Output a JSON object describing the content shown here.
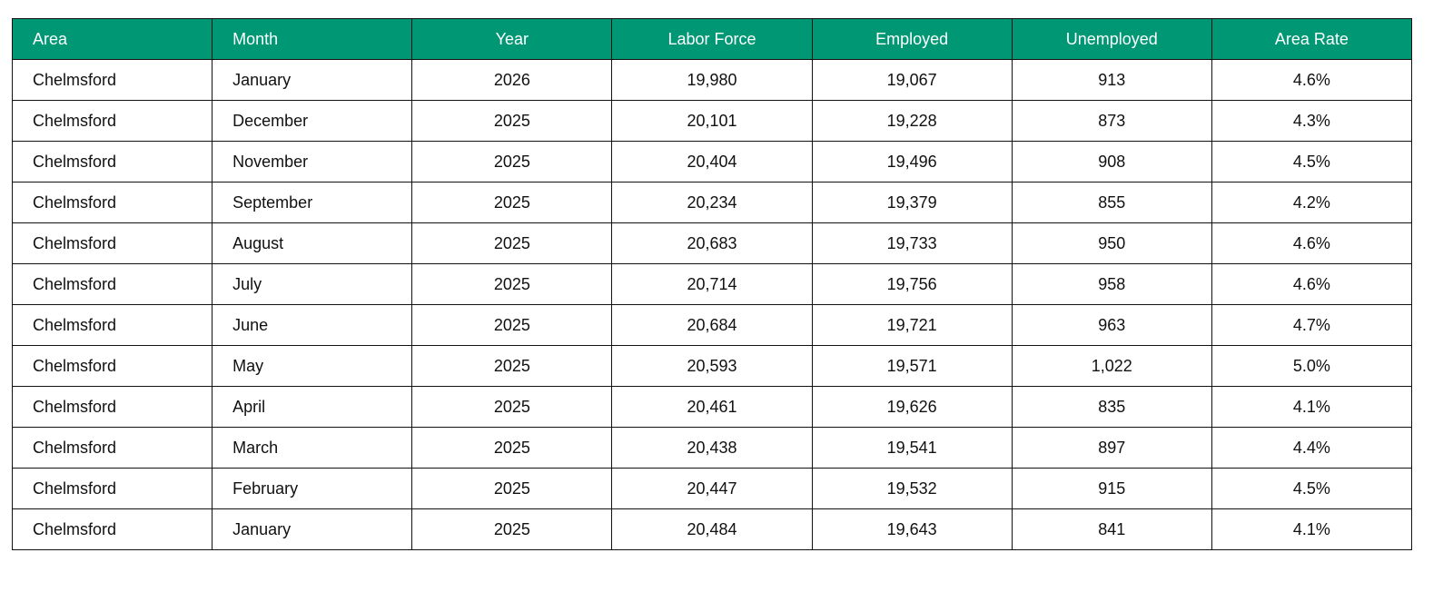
{
  "table": {
    "header": [
      "Area",
      "Month",
      "Year",
      "Labor Force",
      "Employed",
      "Unemployed",
      "Area Rate"
    ],
    "rows": [
      [
        "Chelmsford",
        "January",
        "2026",
        "19,980",
        "19,067",
        "913",
        "4.6%"
      ],
      [
        "Chelmsford",
        "December",
        "2025",
        "20,101",
        "19,228",
        "873",
        "4.3%"
      ],
      [
        "Chelmsford",
        "November",
        "2025",
        "20,404",
        "19,496",
        "908",
        "4.5%"
      ],
      [
        "Chelmsford",
        "September",
        "2025",
        "20,234",
        "19,379",
        "855",
        "4.2%"
      ],
      [
        "Chelmsford",
        "August",
        "2025",
        "20,683",
        "19,733",
        "950",
        "4.6%"
      ],
      [
        "Chelmsford",
        "July",
        "2025",
        "20,714",
        "19,756",
        "958",
        "4.6%"
      ],
      [
        "Chelmsford",
        "June",
        "2025",
        "20,684",
        "19,721",
        "963",
        "4.7%"
      ],
      [
        "Chelmsford",
        "May",
        "2025",
        "20,593",
        "19,571",
        "1,022",
        "5.0%"
      ],
      [
        "Chelmsford",
        "April",
        "2025",
        "20,461",
        "19,626",
        "835",
        "4.1%"
      ],
      [
        "Chelmsford",
        "March",
        "2025",
        "20,438",
        "19,541",
        "897",
        "4.4%"
      ],
      [
        "Chelmsford",
        "February",
        "2025",
        "20,447",
        "19,532",
        "915",
        "4.5%"
      ],
      [
        "Chelmsford",
        "January",
        "2025",
        "20,484",
        "19,643",
        "841",
        "4.1%"
      ]
    ]
  }
}
